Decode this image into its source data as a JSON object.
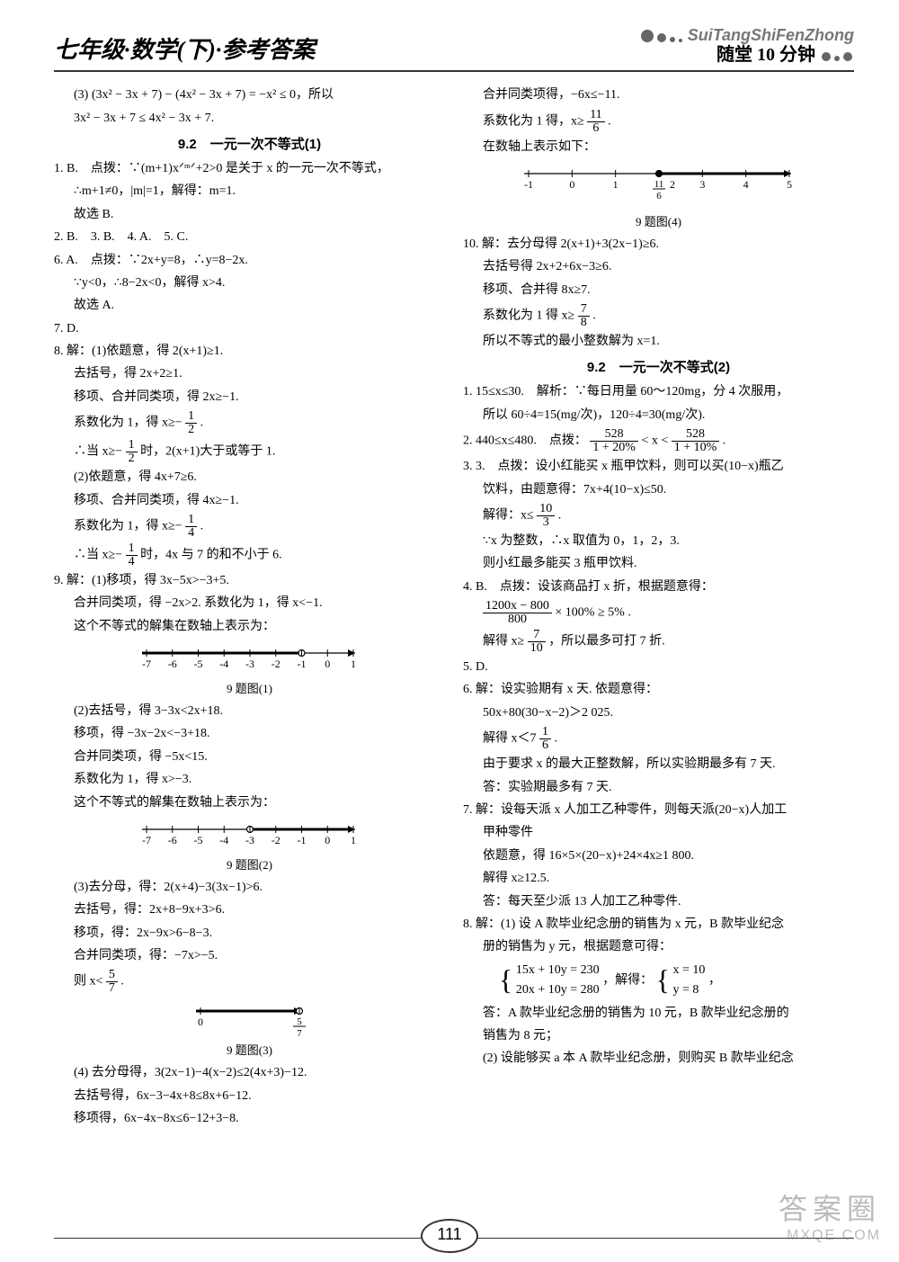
{
  "header": {
    "title_left": "七年级·数学(下)·参考答案",
    "pinyin": "SuiTangShiFenZhong",
    "cn": "随堂 10 分钟"
  },
  "section_titles": {
    "s92_1": "9.2　一元一次不等式(1)",
    "s92_2": "9.2　一元一次不等式(2)"
  },
  "left": {
    "l1": "(3) (3x² − 3x + 7) − (4x² − 3x + 7) = −x² ≤ 0，所以",
    "l2": "3x² − 3x + 7 ≤ 4x² − 3x + 7.",
    "q1": "1. B.　点拨：∵(m+1)xᐟᵐᐟ+2>0 是关于 x 的一元一次不等式，",
    "q1b": "∴m+1≠0，|m|=1，解得：m=1.",
    "q1c": "故选 B.",
    "q2": "2. B.　3. B.　4. A.　5. C.",
    "q6a": "6. A.　点拨：∵2x+y=8，∴y=8−2x.",
    "q6b": "∵y<0，∴8−2x<0，解得 x>4.",
    "q6c": "故选 A.",
    "q7": "7. D.",
    "q8a": "8. 解：(1)依题意，得 2(x+1)≥1.",
    "q8b": "去括号，得 2x+2≥1.",
    "q8c": "移项、合并同类项，得 2x≥−1.",
    "q8d_pre": "系数化为 1，得 x≥−",
    "q8d_num": "1",
    "q8d_den": "2",
    "q8d_post": " .",
    "q8e_pre": "∴当 x≥−",
    "q8e_num": "1",
    "q8e_den": "2",
    "q8e_post": " 时，2(x+1)大于或等于 1.",
    "q8f": "(2)依题意，得 4x+7≥6.",
    "q8g": "移项、合并同类项，得 4x≥−1.",
    "q8h_pre": "系数化为 1，得 x≥−",
    "q8h_num": "1",
    "q8h_den": "4",
    "q8h_post": " .",
    "q8i_pre": "∴当 x≥−",
    "q8i_num": "1",
    "q8i_den": "4",
    "q8i_post": " 时，4x 与 7 的和不小于 6.",
    "q9a": "9. 解：(1)移项，得 3x−5x>−3+5.",
    "q9b": "合并同类项，得 −2x>2. 系数化为 1，得 x<−1.",
    "q9c": "这个不等式的解集在数轴上表示为：",
    "fig1_cap": "9 题图(1)",
    "q9d": "(2)去括号，得 3−3x<2x+18.",
    "q9e": "移项，得 −3x−2x<−3+18.",
    "q9f": "合并同类项，得 −5x<15.",
    "q9g": "系数化为 1，得 x>−3.",
    "q9h": "这个不等式的解集在数轴上表示为：",
    "fig2_cap": "9 题图(2)",
    "q9i": "(3)去分母，得：2(x+4)−3(3x−1)>6.",
    "q9j": "去括号，得：2x+8−9x+3>6.",
    "q9k": "移项，得：2x−9x>6−8−3.",
    "q9l": "合并同类项，得：−7x>−5.",
    "q9m_pre": "则 x<",
    "q9m_num": "5",
    "q9m_den": "7",
    "q9m_post": " .",
    "fig3_cap": "9 题图(3)",
    "q9n": "(4) 去分母得，3(2x−1)−4(x−2)≤2(4x+3)−12.",
    "q9o": "去括号得，6x−3−4x+8≤8x+6−12.",
    "q9p": "移项得，6x−4x−8x≤6−12+3−8."
  },
  "right": {
    "r1": "合并同类项得，−6x≤−11.",
    "r2_pre": "系数化为 1 得，x≥",
    "r2_num": "11",
    "r2_den": "6",
    "r2_post": " .",
    "r3": "在数轴上表示如下：",
    "fig4_cap": "9 题图(4)",
    "q10a": "10. 解：去分母得 2(x+1)+3(2x−1)≥6.",
    "q10b": "去括号得 2x+2+6x−3≥6.",
    "q10c": "移项、合并得 8x≥7.",
    "q10d_pre": "系数化为 1 得 x≥",
    "q10d_num": "7",
    "q10d_den": "8",
    "q10d_post": " .",
    "q10e": "所以不等式的最小整数解为 x=1.",
    "s2_q1a": "1. 15≤x≤30.　解析：∵每日用量 60～120mg，分 4 次服用，",
    "s2_q1b": "所以 60÷4=15(mg/次)，120÷4=30(mg/次).",
    "s2_q2_pre": "2. 440≤x≤480.　点拨：",
    "s2_q2a_num": "528",
    "s2_q2a_den": "1 + 20%",
    "s2_q2_mid": " < x < ",
    "s2_q2b_num": "528",
    "s2_q2b_den": "1 + 10%",
    "s2_q2_post": " .",
    "s2_q3a": "3. 3.　点拨：设小红能买 x 瓶甲饮料，则可以买(10−x)瓶乙",
    "s2_q3b": "饮料，由题意得：7x+4(10−x)≤50.",
    "s2_q3c_pre": "解得：x≤",
    "s2_q3c_num": "10",
    "s2_q3c_den": "3",
    "s2_q3c_post": " .",
    "s2_q3d": "∵x 为整数，∴x 取值为 0，1，2，3.",
    "s2_q3e": "则小红最多能买 3 瓶甲饮料.",
    "s2_q4a": "4. B.　点拨：设该商品打 x 折，根据题意得：",
    "s2_q4b_num": "1200x − 800",
    "s2_q4b_den": "800",
    "s2_q4b_post": " × 100% ≥ 5% .",
    "s2_q4c_pre": "解得 x≥",
    "s2_q4c_num": "7",
    "s2_q4c_den": "10",
    "s2_q4c_post": " ，所以最多可打 7 折.",
    "s2_q5": "5. D.",
    "s2_q6a": "6. 解：设实验期有 x 天. 依题意得：",
    "s2_q6b": "50x+80(30−x−2)＞2 025.",
    "s2_q6c_pre": "解得 x＜7",
    "s2_q6c_num": "1",
    "s2_q6c_den": "6",
    "s2_q6c_post": " .",
    "s2_q6d": "由于要求 x 的最大正整数解，所以实验期最多有 7 天.",
    "s2_q6e": "答：实验期最多有 7 天.",
    "s2_q7a": "7. 解：设每天派 x 人加工乙种零件，则每天派(20−x)人加工",
    "s2_q7b": "甲种零件",
    "s2_q7c": "依题意，得 16×5×(20−x)+24×4x≥1 800.",
    "s2_q7d": "解得 x≥12.5.",
    "s2_q7e": "答：每天至少派 13 人加工乙种零件.",
    "s2_q8a": "8. 解：(1) 设 A 款毕业纪念册的销售为 x 元，B 款毕业纪念",
    "s2_q8b": "册的销售为 y 元，根据题意可得：",
    "s2_q8c_1": "15x + 10y = 230",
    "s2_q8c_2": "20x + 10y = 280",
    "s2_q8c_mid": "，解得：",
    "s2_q8c_3": "x = 10",
    "s2_q8c_4": "y = 8",
    "s2_q8c_5": "，",
    "s2_q8d": "答：A 款毕业纪念册的销售为 10 元，B 款毕业纪念册的",
    "s2_q8e": "销售为 8 元；",
    "s2_q8f": "(2) 设能够买 a 本 A 款毕业纪念册，则购买 B 款毕业纪念"
  },
  "numberlines": {
    "nl1": {
      "ticks": [
        -7,
        -6,
        -5,
        -4,
        -3,
        -2,
        -1,
        0,
        1
      ],
      "boundary": -1,
      "open": true,
      "direction": "left",
      "arrowRight": true
    },
    "nl2": {
      "ticks": [
        -7,
        -6,
        -5,
        -4,
        -3,
        -2,
        -1,
        0,
        1
      ],
      "boundary": -3,
      "open": true,
      "direction": "right",
      "arrowRight": true
    },
    "nl3": {
      "ticks_custom": [
        "0",
        "5/7"
      ],
      "boundary_idx": 1,
      "open": true,
      "direction": "left",
      "arrowRight": true,
      "small": true
    },
    "nl4": {
      "ticks_custom": [
        "-1",
        "0",
        "1",
        "11/6|2",
        "3",
        "4",
        "5"
      ],
      "boundary_idx": 3,
      "open": false,
      "direction": "right",
      "arrowRight": true
    }
  },
  "pagenum": "111",
  "watermark": {
    "top": "答案圈",
    "bottom": "MXQE.COM"
  },
  "colors": {
    "text": "#000000",
    "line": "#000000",
    "wm": "rgba(120,120,120,0.5)"
  }
}
